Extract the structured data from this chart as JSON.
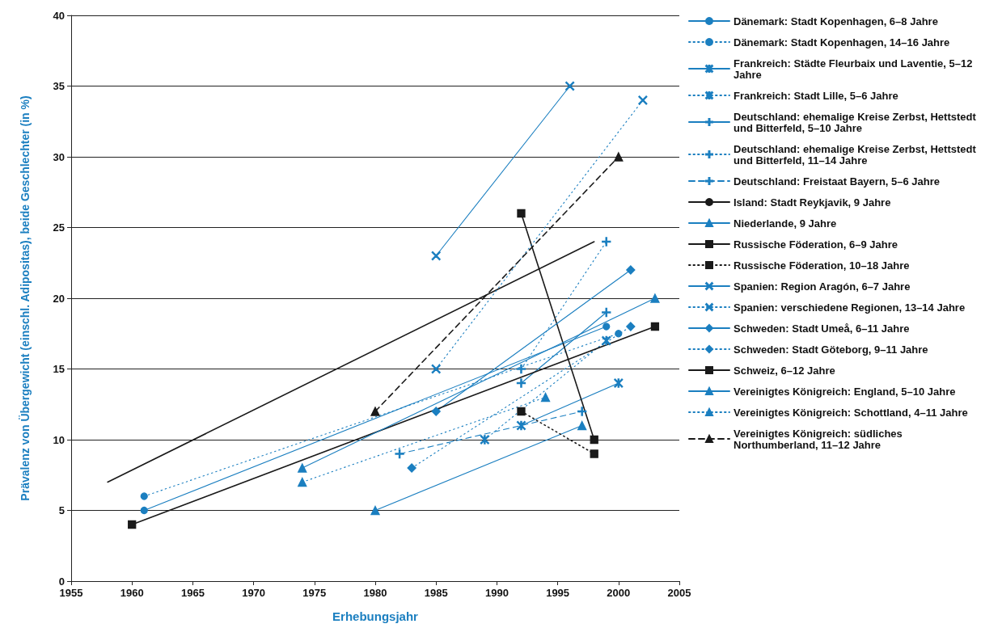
{
  "chart_data": {
    "type": "line",
    "xlabel": "Erhebungsjahr",
    "ylabel": "Prävalenz von Übergewicht (einschl. Adipositas), beide Geschlechter (in %)",
    "xlim": [
      1955,
      2005
    ],
    "xticks": [
      1955,
      1960,
      1965,
      1970,
      1975,
      1980,
      1985,
      1990,
      1995,
      2000,
      2005
    ],
    "ylim": [
      0,
      40
    ],
    "yticks": [
      0,
      5,
      10,
      15,
      20,
      25,
      30,
      35,
      40
    ],
    "grid": "y",
    "legend": "right",
    "series": [
      {
        "name": "Dänemark: Stadt Kopenhagen, 6–8 Jahre",
        "color": "#1b7fc0",
        "marker": "circle",
        "line_style": "solid",
        "x": [
          1961,
          1999
        ],
        "values": [
          5,
          18
        ]
      },
      {
        "name": "Dänemark: Stadt Kopenhagen, 14–16 Jahre",
        "color": "#1b7fc0",
        "marker": "circle",
        "line_style": "dotted",
        "x": [
          1961,
          2000
        ],
        "values": [
          6,
          17.5
        ]
      },
      {
        "name": "Frankreich: Städte Fleurbaix und Laventie, 5–12 Jahre",
        "color": "#1b7fc0",
        "marker": "star",
        "line_style": "solid",
        "x": [
          1992,
          2000
        ],
        "values": [
          11,
          14
        ]
      },
      {
        "name": "Frankreich: Stadt Lille, 5–6 Jahre",
        "color": "#1b7fc0",
        "marker": "star",
        "line_style": "dotted",
        "x": [
          1989,
          1999
        ],
        "values": [
          10,
          17
        ]
      },
      {
        "name": "Deutschland: ehemalige Kreise Zerbst, Hettstedt und Bitterfeld, 5–10 Jahre",
        "color": "#1b7fc0",
        "marker": "plus",
        "line_style": "solid",
        "x": [
          1992,
          1999
        ],
        "values": [
          14,
          19
        ]
      },
      {
        "name": "Deutschland: ehemalige Kreise Zerbst, Hettstedt und Bitterfeld, 11–14 Jahre",
        "color": "#1b7fc0",
        "marker": "plus",
        "line_style": "dotted",
        "x": [
          1992,
          1999
        ],
        "values": [
          15,
          24
        ]
      },
      {
        "name": "Deutschland: Freistaat Bayern, 5–6 Jahre",
        "color": "#1b7fc0",
        "marker": "plus",
        "line_style": "dashed",
        "x": [
          1982,
          1997
        ],
        "values": [
          9,
          12
        ]
      },
      {
        "name": "Island: Stadt Reykjavik, 9 Jahre",
        "color": "#1a1a1a",
        "marker": "none",
        "line_style": "solid",
        "x": [
          1958,
          1998
        ],
        "values": [
          7,
          24
        ]
      },
      {
        "name": "Niederlande, 9 Jahre",
        "color": "#1b7fc0",
        "marker": "triangle",
        "line_style": "solid",
        "x": [
          1980,
          1997
        ],
        "values": [
          5,
          11
        ]
      },
      {
        "name": "Russische Föderation, 6–9 Jahre",
        "color": "#1a1a1a",
        "marker": "square",
        "line_style": "solid",
        "x": [
          1992,
          1998
        ],
        "values": [
          26,
          10
        ]
      },
      {
        "name": "Russische Föderation, 10–18 Jahre",
        "color": "#1a1a1a",
        "marker": "square",
        "line_style": "dotted",
        "x": [
          1992,
          1998
        ],
        "values": [
          12,
          9
        ]
      },
      {
        "name": "Spanien: Region Aragón, 6–7 Jahre",
        "color": "#1b7fc0",
        "marker": "cross",
        "line_style": "solid",
        "x": [
          1985,
          1996
        ],
        "values": [
          23,
          35
        ]
      },
      {
        "name": "Spanien: verschiedene Regionen, 13–14 Jahre",
        "color": "#1b7fc0",
        "marker": "cross",
        "line_style": "dotted",
        "x": [
          1985,
          2002
        ],
        "values": [
          15,
          34
        ]
      },
      {
        "name": "Schweden: Stadt Umeå, 6–11 Jahre",
        "color": "#1b7fc0",
        "marker": "diamond",
        "line_style": "solid",
        "x": [
          1985,
          2001
        ],
        "values": [
          12,
          22
        ]
      },
      {
        "name": "Schweden: Stadt Göteborg, 9–11 Jahre",
        "color": "#1b7fc0",
        "marker": "diamond",
        "line_style": "dotted",
        "x": [
          1983,
          2001
        ],
        "values": [
          8,
          18
        ]
      },
      {
        "name": "Schweiz, 6–12 Jahre",
        "color": "#1a1a1a",
        "marker": "square",
        "line_style": "solid",
        "x": [
          1960,
          2003
        ],
        "values": [
          4,
          18
        ]
      },
      {
        "name": "Vereinigtes Königreich: England, 5–10 Jahre",
        "color": "#1b7fc0",
        "marker": "triangle",
        "line_style": "solid",
        "x": [
          1974,
          2003
        ],
        "values": [
          8,
          20
        ]
      },
      {
        "name": "Vereinigtes Königreich: Schottland, 4–11 Jahre",
        "color": "#1b7fc0",
        "marker": "triangle",
        "line_style": "dotted",
        "x": [
          1974,
          1994
        ],
        "values": [
          7,
          13
        ]
      },
      {
        "name": "Vereinigtes Königreich: südliches Northumberland, 11–12 Jahre",
        "color": "#1a1a1a",
        "marker": "triangle",
        "line_style": "dashed",
        "x": [
          1980,
          2000
        ],
        "values": [
          12,
          30
        ]
      }
    ]
  }
}
